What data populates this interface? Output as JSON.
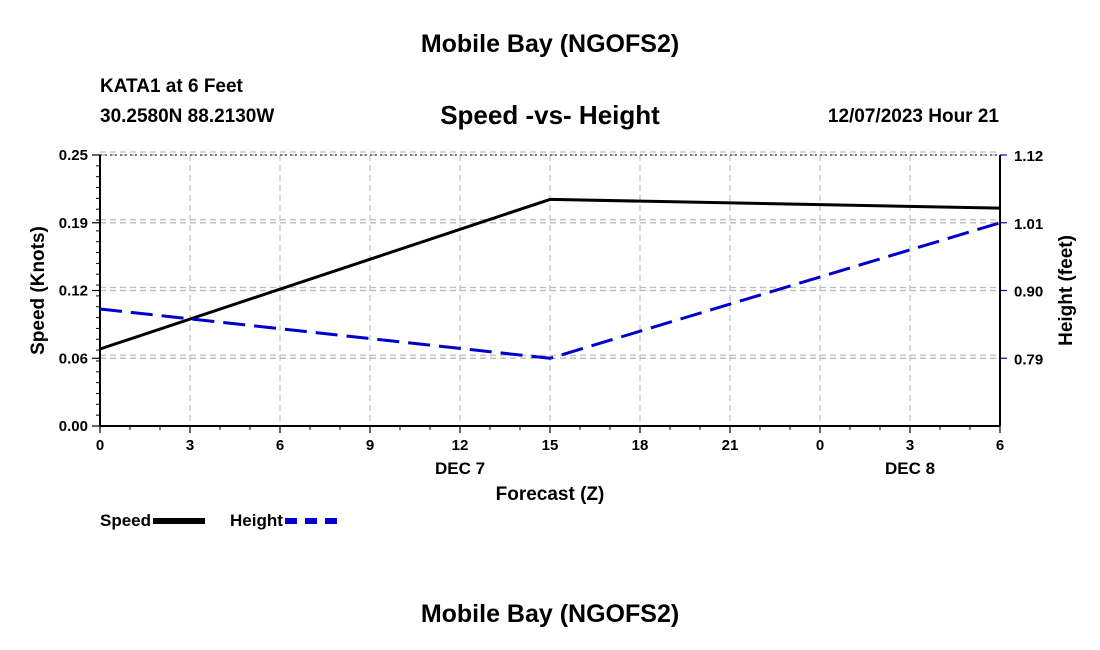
{
  "header": {
    "title": "Mobile Bay (NGOFS2)",
    "station": "KATA1 at 6 Feet",
    "coords": "30.2580N  88.2130W",
    "datetime": "12/07/2023 Hour 21",
    "footer_title": "Mobile Bay (NGOFS2)"
  },
  "chart_data": {
    "type": "line",
    "title": "Speed -vs- Height",
    "xlabel": "Forecast (Z)",
    "ylabel_left": "Speed (Knots)",
    "ylabel_right": "Height (feet)",
    "x_ticks": [
      "0",
      "3",
      "6",
      "9",
      "12",
      "15",
      "18",
      "21",
      "0",
      "3",
      "6"
    ],
    "x_date_labels": [
      {
        "label": "DEC 7",
        "at_tick": 4
      },
      {
        "label": "DEC 8",
        "at_tick": 9
      }
    ],
    "xlim": [
      0,
      30
    ],
    "y_left": {
      "ticks": [
        "0.00",
        "0.06",
        "0.12",
        "0.19",
        "0.25"
      ],
      "ylim": [
        0,
        0.25
      ]
    },
    "y_right": {
      "ticks": [
        "0.79",
        "0.90",
        "1.01",
        "1.12"
      ],
      "tick_values": [
        0.79,
        0.9,
        1.01,
        1.12
      ],
      "ylim": [
        0.68,
        1.12
      ]
    },
    "grid": true,
    "series": [
      {
        "name": "Speed",
        "axis": "left",
        "color": "#000000",
        "style": "solid",
        "x": [
          0,
          15,
          30
        ],
        "y": [
          0.071,
          0.209,
          0.201
        ]
      },
      {
        "name": "Height",
        "axis": "right",
        "color": "#0000cc",
        "style": "dashed",
        "x": [
          0,
          15,
          30
        ],
        "y": [
          0.87,
          0.79,
          1.01
        ]
      }
    ],
    "legend": "bottom-left"
  }
}
